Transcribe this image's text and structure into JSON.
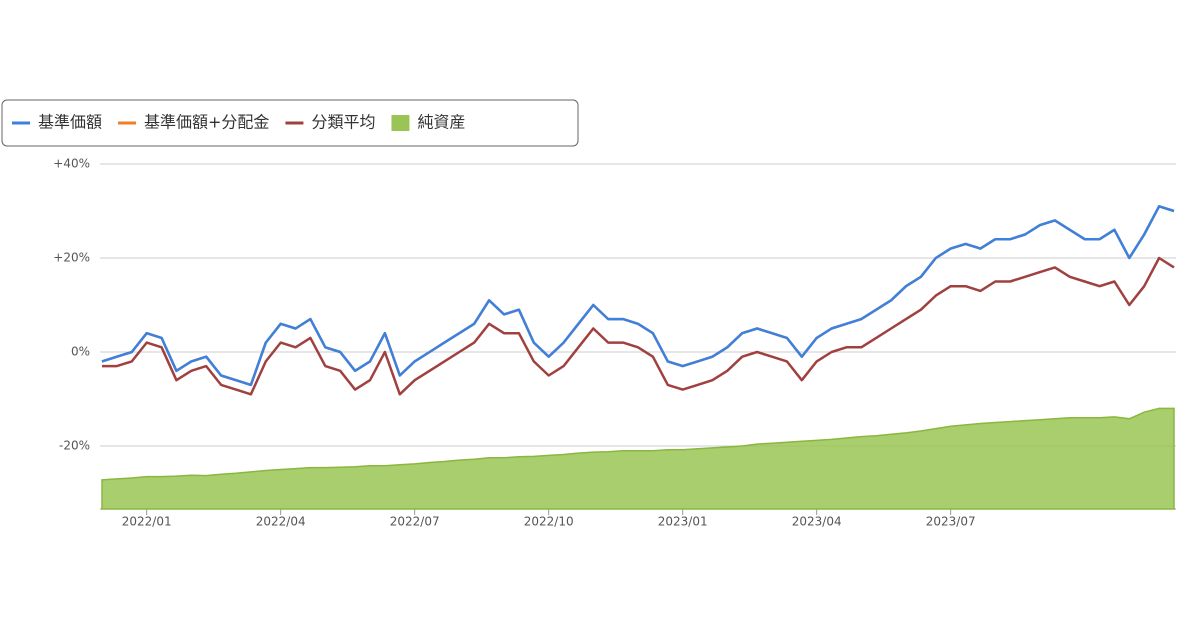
{
  "chart_data": {
    "type": "line",
    "categories": [
      null,
      null,
      null,
      "2022/01",
      null,
      null,
      null,
      null,
      null,
      null,
      null,
      null,
      "2022/04",
      null,
      null,
      null,
      null,
      null,
      null,
      null,
      null,
      "2022/07",
      null,
      null,
      null,
      null,
      null,
      null,
      null,
      null,
      "2022/10",
      null,
      null,
      null,
      null,
      null,
      null,
      null,
      null,
      "2023/01",
      null,
      null,
      null,
      null,
      null,
      null,
      null,
      null,
      "2023/04",
      null,
      null,
      null,
      null,
      null,
      null,
      null,
      null,
      "2023/07",
      null,
      null,
      null,
      null,
      null,
      null,
      null,
      null,
      null,
      null,
      null,
      null,
      null,
      null,
      null
    ],
    "series": [
      {
        "name": "基準価額",
        "color": "#3b82e0",
        "style": "line",
        "values": [
          -2,
          -1,
          0,
          4,
          3,
          -4,
          -2,
          -1,
          -5,
          -6,
          -7,
          2,
          6,
          5,
          7,
          1,
          0,
          -4,
          -2,
          4,
          -5,
          -2,
          0,
          2,
          4,
          6,
          11,
          8,
          9,
          2,
          -1,
          2,
          6,
          10,
          7,
          7,
          6,
          4,
          -2,
          -3,
          -2,
          -1,
          1,
          4,
          5,
          4,
          3,
          -1,
          3,
          5,
          6,
          7,
          9,
          11,
          14,
          16,
          20,
          22,
          23,
          22,
          24,
          24,
          25,
          27,
          28,
          26,
          24,
          24,
          26,
          20,
          25,
          31,
          30
        ]
      },
      {
        "name": "基準価額+分配金",
        "color": "#f07f2a",
        "style": "line",
        "values": [
          -2,
          -1,
          0,
          4,
          3,
          -4,
          -2,
          -1,
          -5,
          -6,
          -7,
          2,
          6,
          5,
          7,
          1,
          0,
          -4,
          -2,
          4,
          -5,
          -2,
          0,
          2,
          4,
          6,
          11,
          8,
          9,
          2,
          -1,
          2,
          6,
          10,
          7,
          7,
          6,
          4,
          -2,
          -3,
          -2,
          -1,
          1,
          4,
          5,
          4,
          3,
          -1,
          3,
          5,
          6,
          7,
          9,
          11,
          14,
          16,
          20,
          22,
          23,
          22,
          24,
          24,
          25,
          27,
          28,
          26,
          24,
          24,
          26,
          20,
          25,
          31,
          30
        ]
      },
      {
        "name": "分類平均",
        "color": "#a0403f",
        "style": "line",
        "values": [
          -3,
          -3,
          -2,
          2,
          1,
          -6,
          -4,
          -3,
          -7,
          -8,
          -9,
          -2,
          2,
          1,
          3,
          -3,
          -4,
          -8,
          -6,
          0,
          -9,
          -6,
          -4,
          -2,
          0,
          2,
          6,
          4,
          4,
          -2,
          -5,
          -3,
          1,
          5,
          2,
          2,
          1,
          -1,
          -7,
          -8,
          -7,
          -6,
          -4,
          -1,
          0,
          -1,
          -2,
          -6,
          -2,
          0,
          1,
          1,
          3,
          5,
          7,
          9,
          12,
          14,
          14,
          13,
          15,
          15,
          16,
          17,
          18,
          16,
          15,
          14,
          15,
          10,
          14,
          20,
          18
        ]
      },
      {
        "name": "純資産",
        "color": "#9ac554",
        "style": "area",
        "values": [
          -27.2,
          -27,
          -26.8,
          -26.5,
          -26.5,
          -26.4,
          -26.2,
          -26.3,
          -26,
          -25.8,
          -25.5,
          -25.2,
          -25,
          -24.8,
          -24.6,
          -24.6,
          -24.5,
          -24.4,
          -24.2,
          -24.2,
          -24,
          -23.8,
          -23.5,
          -23.3,
          -23,
          -22.8,
          -22.5,
          -22.5,
          -22.3,
          -22.2,
          -22,
          -21.8,
          -21.5,
          -21.3,
          -21.2,
          -21,
          -21,
          -21,
          -20.8,
          -20.8,
          -20.6,
          -20.4,
          -20.2,
          -20,
          -19.6,
          -19.4,
          -19.2,
          -19,
          -18.8,
          -18.6,
          -18.3,
          -18,
          -17.8,
          -17.5,
          -17.2,
          -16.8,
          -16.3,
          -15.8,
          -15.5,
          -15.2,
          -15,
          -14.8,
          -14.6,
          -14.4,
          -14.2,
          -14,
          -14,
          -14,
          -13.8,
          -14.2,
          -12.8,
          -12,
          -12
        ]
      }
    ],
    "ylim": [
      -33.4,
      40
    ],
    "yticks": [
      {
        "value": -20,
        "label": "-20%"
      },
      {
        "value": 0,
        "label": "0%"
      },
      {
        "value": 20,
        "label": "+20%"
      },
      {
        "value": 40,
        "label": "+40%"
      }
    ],
    "grid": true,
    "legend": "top-left"
  }
}
